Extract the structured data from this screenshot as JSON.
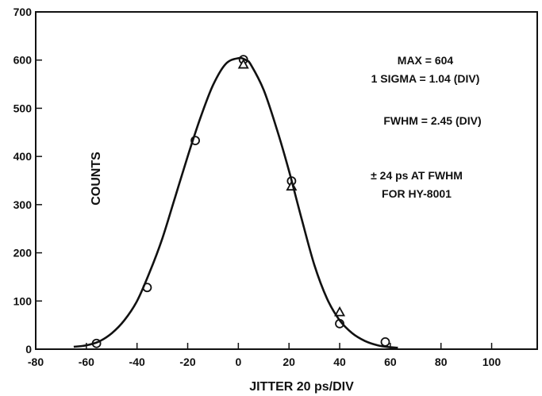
{
  "chart_data": {
    "type": "scatter",
    "title": "",
    "xlabel": "JITTER 20 ps/DIV",
    "ylabel": "COUNTS",
    "xlim": [
      -80,
      118
    ],
    "ylim": [
      0,
      700
    ],
    "xticks": [
      -80,
      -60,
      -40,
      -20,
      0,
      20,
      40,
      60,
      80,
      100
    ],
    "yticks": [
      0,
      100,
      200,
      300,
      400,
      500,
      600,
      700
    ],
    "grid": false,
    "series": [
      {
        "marker": "circle",
        "x": [
          -56,
          -36,
          -17,
          2,
          21,
          40,
          58
        ],
        "y": [
          12,
          128,
          433,
          601,
          349,
          53,
          15
        ]
      },
      {
        "marker": "triangle",
        "x": [
          2,
          21,
          40
        ],
        "y": [
          591,
          338,
          77
        ]
      },
      {
        "marker": "line",
        "x": [
          -65,
          -60,
          -55,
          -50,
          -45,
          -40,
          -35,
          -30,
          -25,
          -20,
          -15,
          -10,
          -5,
          0,
          3,
          5,
          10,
          15,
          20,
          25,
          30,
          35,
          40,
          45,
          50,
          55,
          60,
          63
        ],
        "y": [
          5,
          8,
          16,
          33,
          60,
          100,
          160,
          230,
          315,
          400,
          480,
          548,
          592,
          604,
          600,
          590,
          538,
          460,
          370,
          270,
          175,
          105,
          60,
          33,
          17,
          8,
          4,
          3
        ]
      }
    ],
    "annotations": [
      "MAX = 604",
      "1 SIGMA = 1.04 (DIV)",
      "FWHM = 2.45 (DIV)",
      "± 24 ps AT FWHM",
      "FOR HY-8001"
    ]
  }
}
